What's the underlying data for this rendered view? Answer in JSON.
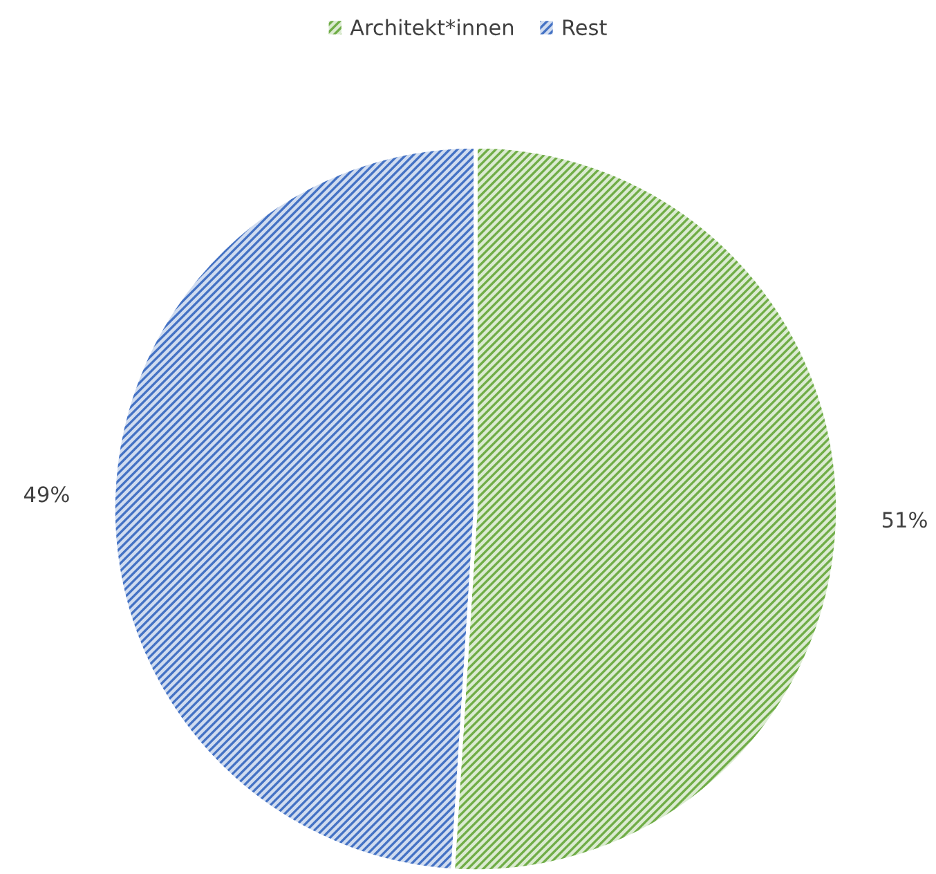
{
  "chart_data": {
    "type": "pie",
    "categories": [
      "Architekt*innen",
      "Rest"
    ],
    "values": [
      51,
      49
    ],
    "colors": [
      "#70ad47",
      "#4472c4"
    ],
    "value_labels": [
      "51%",
      "49%"
    ],
    "legend": "top"
  }
}
